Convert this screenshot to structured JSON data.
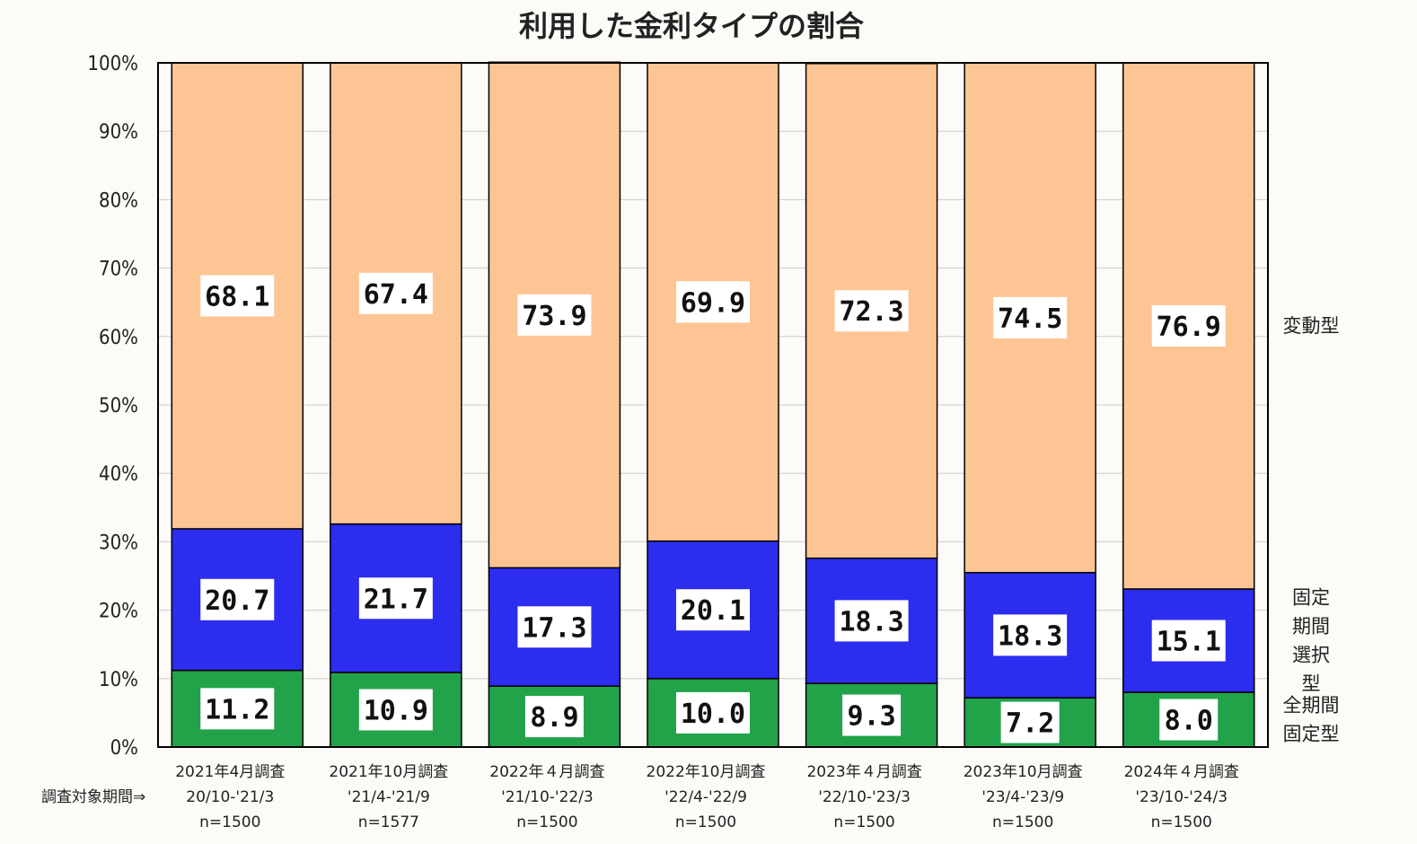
{
  "colors": {
    "variable": "#fdc594",
    "fixed_period": "#2d2df0",
    "full_fixed": "#22a34a",
    "background": "#fcfbf7",
    "grid": "#cccccc"
  },
  "chart_data": {
    "type": "bar",
    "stacked": true,
    "percent": true,
    "title": "利用した金利タイプの割合",
    "ylim": [
      0,
      100
    ],
    "y_ticks": [
      "0%",
      "10%",
      "20%",
      "30%",
      "40%",
      "50%",
      "60%",
      "70%",
      "80%",
      "90%",
      "100%"
    ],
    "grid": true,
    "period_prefix": "調査対象期間⇒",
    "categories": [
      {
        "survey": "2021年4月調査",
        "period": "20/10-'21/3",
        "n": "n=1500"
      },
      {
        "survey": "2021年10月調査",
        "period": "'21/4-'21/9",
        "n": "n=1577"
      },
      {
        "survey": "2022年４月調査",
        "period": "'21/10-'22/3",
        "n": "n=1500"
      },
      {
        "survey": "2022年10月調査",
        "period": "'22/4-'22/9",
        "n": "n=1500"
      },
      {
        "survey": "2023年４月調査",
        "period": "'22/10-'23/3",
        "n": "n=1500"
      },
      {
        "survey": "2023年10月調査",
        "period": "'23/4-'23/9",
        "n": "n=1500"
      },
      {
        "survey": "2024年４月調査",
        "period": "'23/10-'24/3",
        "n": "n=1500"
      }
    ],
    "series": [
      {
        "name": "全期間固定型",
        "legend_lines": [
          "全期間",
          "固定型"
        ],
        "color_key": "full_fixed",
        "values": [
          11.2,
          10.9,
          8.9,
          10.0,
          9.3,
          7.2,
          8.0
        ],
        "labels": [
          "11.2",
          "10.9",
          "8.9",
          "10.0",
          "9.3",
          "7.2",
          "8.0"
        ]
      },
      {
        "name": "固定期間選択型",
        "legend_lines": [
          "固定",
          "期間",
          "選択",
          "型"
        ],
        "color_key": "fixed_period",
        "values": [
          20.7,
          21.7,
          17.3,
          20.1,
          18.3,
          18.3,
          15.1
        ],
        "labels": [
          "20.7",
          "21.7",
          "17.3",
          "20.1",
          "18.3",
          "18.3",
          "15.1"
        ]
      },
      {
        "name": "変動型",
        "legend_lines": [
          "変動型"
        ],
        "color_key": "variable",
        "values": [
          68.1,
          67.4,
          73.9,
          69.9,
          72.3,
          74.5,
          76.9
        ],
        "labels": [
          "68.1",
          "67.4",
          "73.9",
          "69.9",
          "72.3",
          "74.5",
          "76.9"
        ]
      }
    ]
  }
}
